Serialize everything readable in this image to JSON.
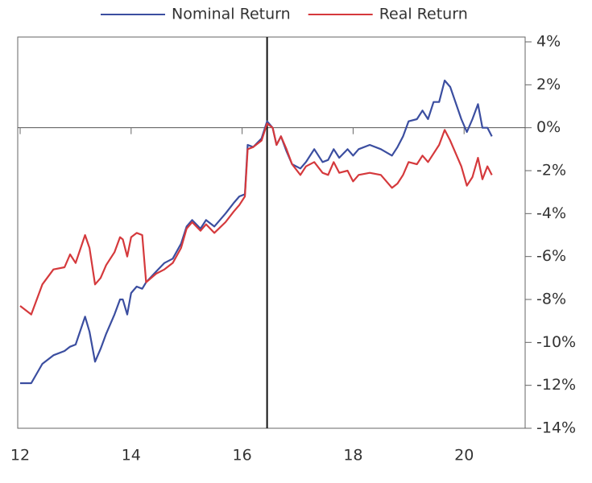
{
  "chart_data": {
    "type": "line",
    "x": [
      12.0,
      12.2,
      12.4,
      12.6,
      12.8,
      12.9,
      13.0,
      13.17,
      13.25,
      13.35,
      13.45,
      13.55,
      13.7,
      13.8,
      13.85,
      13.93,
      14.0,
      14.1,
      14.2,
      14.27,
      14.45,
      14.6,
      14.75,
      14.9,
      15.0,
      15.1,
      15.25,
      15.35,
      15.5,
      15.7,
      15.85,
      15.95,
      16.05,
      16.1,
      16.2,
      16.35,
      16.45,
      16.55,
      16.62,
      16.7,
      16.8,
      16.9,
      17.05,
      17.15,
      17.3,
      17.45,
      17.55,
      17.65,
      17.75,
      17.9,
      18.0,
      18.1,
      18.3,
      18.5,
      18.7,
      18.8,
      18.9,
      19.0,
      19.15,
      19.25,
      19.35,
      19.45,
      19.55,
      19.65,
      19.75,
      19.95,
      20.05,
      20.15,
      20.25,
      20.33,
      20.42,
      20.5
    ],
    "series": [
      {
        "name": "Nominal Return",
        "color": "#3b4ea0",
        "values": [
          -11.9,
          -11.9,
          -11.0,
          -10.6,
          -10.4,
          -10.2,
          -10.1,
          -8.8,
          -9.5,
          -10.9,
          -10.3,
          -9.6,
          -8.7,
          -8.0,
          -8.0,
          -8.7,
          -7.7,
          -7.4,
          -7.5,
          -7.2,
          -6.7,
          -6.3,
          -6.1,
          -5.4,
          -4.6,
          -4.3,
          -4.7,
          -4.3,
          -4.6,
          -4.0,
          -3.5,
          -3.2,
          -3.1,
          -0.8,
          -0.9,
          -0.5,
          0.3,
          0.0,
          -0.8,
          -0.4,
          -1.1,
          -1.7,
          -1.9,
          -1.6,
          -1.0,
          -1.6,
          -1.5,
          -1.0,
          -1.4,
          -1.0,
          -1.3,
          -1.0,
          -0.8,
          -1.0,
          -1.3,
          -0.9,
          -0.4,
          0.3,
          0.4,
          0.8,
          0.4,
          1.2,
          1.2,
          2.2,
          1.9,
          0.4,
          -0.2,
          0.4,
          1.1,
          0.0,
          0.0,
          -0.4
        ]
      },
      {
        "name": "Real Return",
        "color": "#d5393c",
        "values": [
          -8.3,
          -8.7,
          -7.3,
          -6.6,
          -6.5,
          -5.9,
          -6.3,
          -5.0,
          -5.6,
          -7.3,
          -7.0,
          -6.4,
          -5.8,
          -5.1,
          -5.2,
          -6.0,
          -5.1,
          -4.9,
          -5.0,
          -7.2,
          -6.8,
          -6.6,
          -6.3,
          -5.6,
          -4.7,
          -4.4,
          -4.8,
          -4.5,
          -4.9,
          -4.4,
          -3.9,
          -3.6,
          -3.2,
          -1.0,
          -0.9,
          -0.6,
          0.2,
          0.0,
          -0.8,
          -0.4,
          -1.0,
          -1.7,
          -2.2,
          -1.8,
          -1.6,
          -2.1,
          -2.2,
          -1.6,
          -2.1,
          -2.0,
          -2.5,
          -2.2,
          -2.1,
          -2.2,
          -2.8,
          -2.6,
          -2.2,
          -1.6,
          -1.7,
          -1.3,
          -1.6,
          -1.2,
          -0.8,
          -0.1,
          -0.6,
          -1.8,
          -2.7,
          -2.3,
          -1.4,
          -2.4,
          -1.8,
          -2.2
        ]
      }
    ],
    "xlim": [
      12,
      21.1
    ],
    "xticks": [
      12,
      14,
      16,
      18,
      20
    ],
    "ylim": [
      -14,
      4
    ],
    "yticks": [
      {
        "value": 4,
        "label": "4%"
      },
      {
        "value": 2,
        "label": "2%"
      },
      {
        "value": 0,
        "label": "0%"
      },
      {
        "value": -2,
        "label": "-2%"
      },
      {
        "value": -4,
        "label": "-4%"
      },
      {
        "value": -6,
        "label": "-6%"
      },
      {
        "value": -8,
        "label": "-8%"
      },
      {
        "value": -10,
        "label": "-10%"
      },
      {
        "value": -12,
        "label": "-12%"
      },
      {
        "value": -14,
        "label": "-14%"
      }
    ],
    "vline": 16.45,
    "legend": "top"
  }
}
